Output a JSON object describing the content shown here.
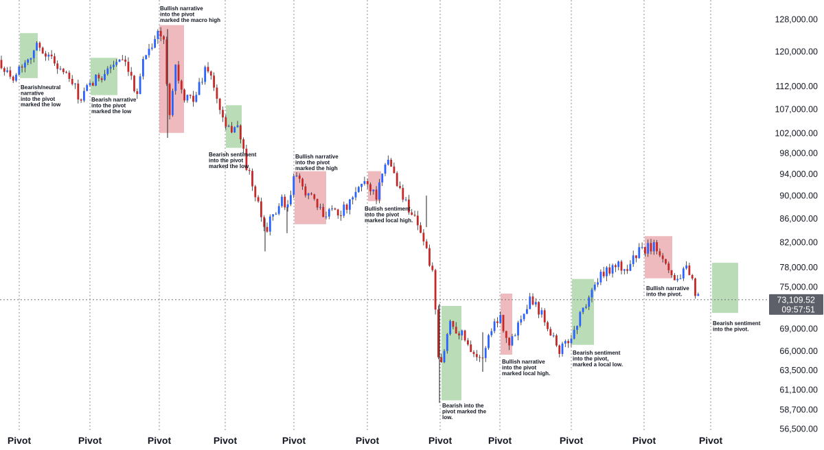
{
  "chart_data": {
    "type": "candlestick",
    "y_axis": {
      "scale": "log",
      "range": [
        56000,
        131000
      ],
      "tick_values": [
        128000,
        120000,
        112000,
        107000,
        102000,
        98000,
        94000,
        90000,
        86000,
        82000,
        78000,
        75000,
        69000,
        66000,
        63500,
        61100,
        58700,
        56500
      ],
      "tick_labels": [
        "128,000.00",
        "120,000.00",
        "112,000.00",
        "107,000.00",
        "102,000.00",
        "98,000.00",
        "94,000.00",
        "90,000.00",
        "86,000.00",
        "82,000.00",
        "78,000.00",
        "75,000.00",
        "69,000.00",
        "66,000.00",
        "63,500.00",
        "61,100.00",
        "58,700.00",
        "56,500.00"
      ]
    },
    "x_axis": {
      "pivot_labels": [
        "Pivot",
        "Pivot",
        "Pivot",
        "Pivot",
        "Pivot",
        "Pivot",
        "Pivot",
        "Pivot",
        "Pivot",
        "Pivot",
        "Pivot"
      ]
    },
    "grid": "vertical dotted lines at each pivot",
    "colors": {
      "up": "#2962ff",
      "down": "#c62828",
      "bullish_zone": "#e8a0a5",
      "bearish_zone": "#a9d5a5"
    },
    "current_price": {
      "value": 73109.52,
      "label": "73,109.52",
      "countdown": "09:57:51"
    },
    "anchors": [
      {
        "p": 118000
      },
      {
        "p": 113500
      },
      {
        "p": 121500
      },
      {
        "p": 117500
      },
      {
        "p": 114500
      },
      {
        "p": 112000
      },
      {
        "p": 110500
      },
      {
        "p": 108500
      },
      {
        "p": 111000
      },
      {
        "p": 113500
      },
      {
        "p": 118000
      },
      {
        "p": 116000
      },
      {
        "p": 110000
      },
      {
        "p": 119000
      },
      {
        "p": 124500
      },
      {
        "p": 122500
      },
      {
        "p": 104000
      },
      {
        "p": 117000
      },
      {
        "p": 108500
      },
      {
        "p": 110000
      },
      {
        "p": 117000
      },
      {
        "p": 108000
      },
      {
        "p": 102000
      },
      {
        "p": 104000
      },
      {
        "p": 95000
      },
      {
        "p": 84000
      },
      {
        "p": 89000
      },
      {
        "p": 87000
      },
      {
        "p": 93500
      },
      {
        "p": 91000
      },
      {
        "p": 86500
      },
      {
        "p": 88000
      },
      {
        "p": 87000
      },
      {
        "p": 88500
      },
      {
        "p": 93000
      },
      {
        "p": 90000
      },
      {
        "p": 97000
      },
      {
        "p": 90000
      },
      {
        "p": 85000
      },
      {
        "p": 77000
      },
      {
        "p": 63000
      },
      {
        "p": 70000
      },
      {
        "p": 68000
      },
      {
        "p": 64500
      },
      {
        "p": 69000
      },
      {
        "p": 71000
      },
      {
        "p": 66500
      },
      {
        "p": 70000
      },
      {
        "p": 73500
      },
      {
        "p": 71000
      },
      {
        "p": 68500
      },
      {
        "p": 66000
      },
      {
        "p": 67500
      },
      {
        "p": 72000
      },
      {
        "p": 76000
      },
      {
        "p": 78500
      },
      {
        "p": 77500
      },
      {
        "p": 80500
      },
      {
        "p": 81500
      },
      {
        "p": 79000
      },
      {
        "p": 76000
      },
      {
        "p": 77500
      },
      {
        "p": 73100
      }
    ],
    "zones": [
      {
        "kind": "bearish",
        "p_top": 124500,
        "p_bottom": 113800
      },
      {
        "kind": "bearish",
        "p_top": 118500,
        "p_bottom": 110000
      },
      {
        "kind": "bullish",
        "p_top": 126500,
        "p_bottom": 102000
      },
      {
        "kind": "bearish",
        "p_top": 107800,
        "p_bottom": 99000
      },
      {
        "kind": "bullish",
        "p_top": 94500,
        "p_bottom": 85000
      },
      {
        "kind": "bullish",
        "p_top": 94500,
        "p_bottom": 89000
      },
      {
        "kind": "bearish",
        "p_top": 72200,
        "p_bottom": 59800
      },
      {
        "kind": "bullish",
        "p_top": 74000,
        "p_bottom": 65500
      },
      {
        "kind": "bearish",
        "p_top": 76200,
        "p_bottom": 66800
      },
      {
        "kind": "bullish",
        "p_top": 83000,
        "p_bottom": 76300
      },
      {
        "kind": "bearish",
        "p_top": 78700,
        "p_bottom": 71200
      }
    ],
    "annotations": [
      {
        "lines": [
          "Bearish/neutral",
          "narrative",
          "into the pivot",
          "marked the low"
        ]
      },
      {
        "lines": [
          "Bearish narrative",
          "into the pivot",
          "marked the low"
        ]
      },
      {
        "lines": [
          "Bullish narrative",
          "into the pivot",
          "marked the macro high"
        ]
      },
      {
        "lines": [
          "Bearish sentiment",
          "into the pivot",
          "marked the low"
        ]
      },
      {
        "lines": [
          "Bullish narrative",
          "into the pivot",
          "marked the high"
        ]
      },
      {
        "lines": [
          "Bullish sentiment",
          "into the pivot",
          "marked local high."
        ]
      },
      {
        "lines": [
          "Bearish into the",
          "pivot marked the",
          "low."
        ]
      },
      {
        "lines": [
          "Bullish narrative",
          "into the pivot",
          "marked local high."
        ]
      },
      {
        "lines": [
          "Bearish sentiment",
          "into the pivot,",
          "marked a local low."
        ]
      },
      {
        "lines": [
          "Bullish narrative",
          "into the pivot."
        ]
      },
      {
        "lines": [
          "Bearish sentiment",
          "into the pivot."
        ]
      }
    ]
  }
}
